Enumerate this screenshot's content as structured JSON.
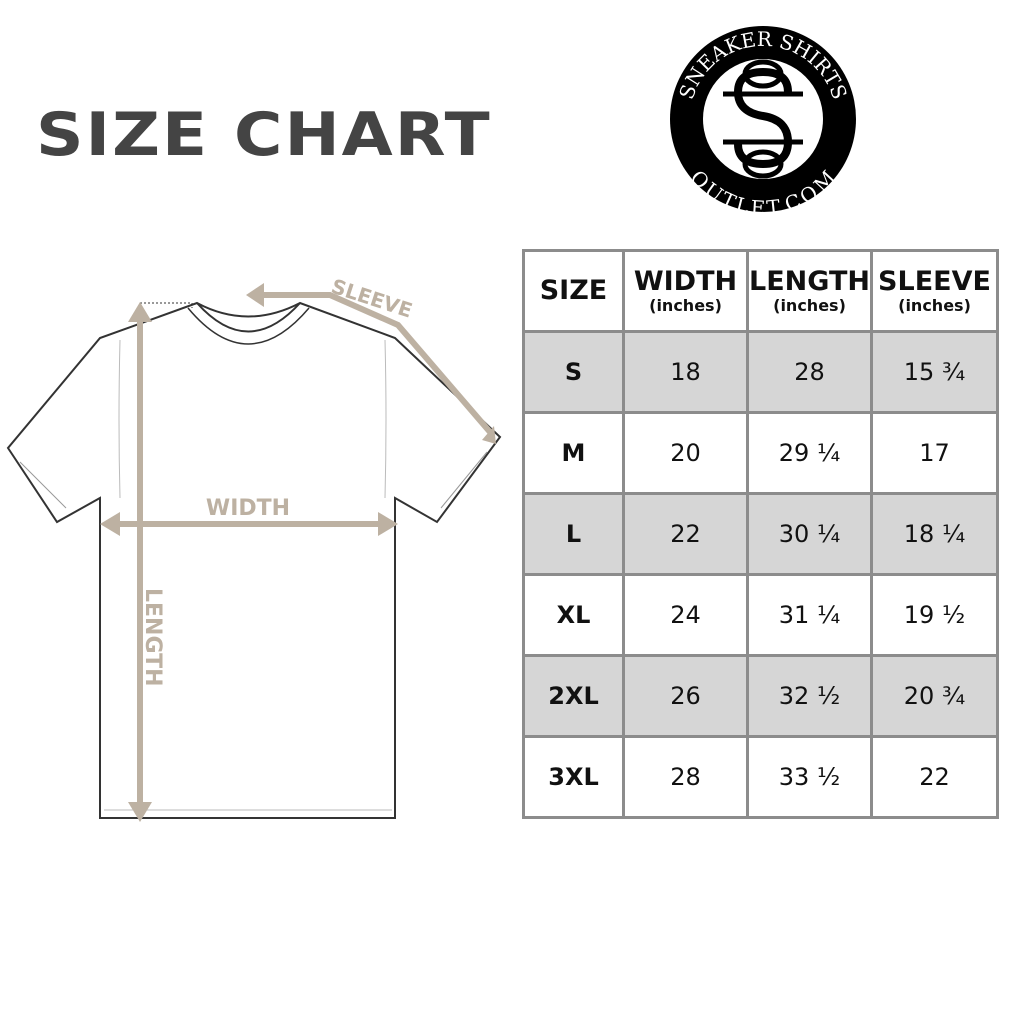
{
  "title": "SIZE CHART",
  "logo": {
    "top_text": "SNEAKER SHIRTS",
    "bottom_text": "OUTLET.COM"
  },
  "diagram": {
    "sleeve_label": "SLEEVE",
    "width_label": "WIDTH",
    "length_label": "LENGTH",
    "accent_color": "#bdb1a2"
  },
  "table": {
    "headers": [
      {
        "label": "SIZE",
        "unit": ""
      },
      {
        "label": "WIDTH",
        "unit": "(inches)"
      },
      {
        "label": "LENGTH",
        "unit": "(inches)"
      },
      {
        "label": "SLEEVE",
        "unit": "(inches)"
      }
    ],
    "rows": [
      [
        "S",
        "18",
        "28",
        "15 ¾"
      ],
      [
        "M",
        "20",
        "29 ¼",
        "17"
      ],
      [
        "L",
        "22",
        "30 ¼",
        "18 ¼"
      ],
      [
        "XL",
        "24",
        "31 ¼",
        "19 ½"
      ],
      [
        "2XL",
        "26",
        "32 ½",
        "20 ¾"
      ],
      [
        "3XL",
        "28",
        "33 ½",
        "22"
      ]
    ],
    "shade_color": "#d6d6d6"
  }
}
